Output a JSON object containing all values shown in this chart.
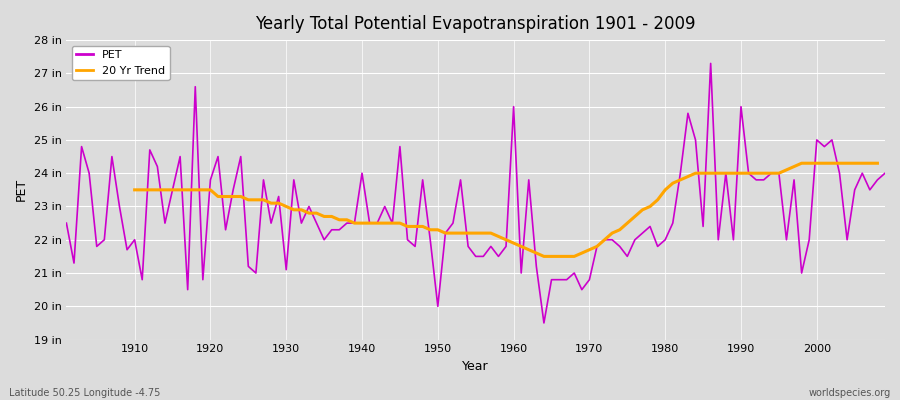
{
  "title": "Yearly Total Potential Evapotranspiration 1901 - 2009",
  "xlabel": "Year",
  "ylabel": "PET",
  "footer_left": "Latitude 50.25 Longitude -4.75",
  "footer_right": "worldspecies.org",
  "pet_color": "#CC00CC",
  "trend_color": "#FFA500",
  "background_color": "#DCDCDC",
  "ylim_min": 19,
  "ylim_max": 28,
  "years": [
    1901,
    1902,
    1903,
    1904,
    1905,
    1906,
    1907,
    1908,
    1909,
    1910,
    1911,
    1912,
    1913,
    1914,
    1915,
    1916,
    1917,
    1918,
    1919,
    1920,
    1921,
    1922,
    1923,
    1924,
    1925,
    1926,
    1927,
    1928,
    1929,
    1930,
    1931,
    1932,
    1933,
    1934,
    1935,
    1936,
    1937,
    1938,
    1939,
    1940,
    1941,
    1942,
    1943,
    1944,
    1945,
    1946,
    1947,
    1948,
    1949,
    1950,
    1951,
    1952,
    1953,
    1954,
    1955,
    1956,
    1957,
    1958,
    1959,
    1960,
    1961,
    1962,
    1963,
    1964,
    1965,
    1966,
    1967,
    1968,
    1969,
    1970,
    1971,
    1972,
    1973,
    1974,
    1975,
    1976,
    1977,
    1978,
    1979,
    1980,
    1981,
    1982,
    1983,
    1984,
    1985,
    1986,
    1987,
    1988,
    1989,
    1990,
    1991,
    1992,
    1993,
    1994,
    1995,
    1996,
    1997,
    1998,
    1999,
    2000,
    2001,
    2002,
    2003,
    2004,
    2005,
    2006,
    2007,
    2008,
    2009
  ],
  "pet_values": [
    22.5,
    21.3,
    24.8,
    24.0,
    21.8,
    22.0,
    24.5,
    23.0,
    21.7,
    22.0,
    20.8,
    24.7,
    24.2,
    22.5,
    23.5,
    24.5,
    20.5,
    26.6,
    20.8,
    23.8,
    24.5,
    22.3,
    23.5,
    24.5,
    21.2,
    21.0,
    23.8,
    22.5,
    23.3,
    21.1,
    23.8,
    22.5,
    23.0,
    22.5,
    22.0,
    22.3,
    22.3,
    22.5,
    22.5,
    24.0,
    22.5,
    22.5,
    23.0,
    22.5,
    24.8,
    22.0,
    21.8,
    23.8,
    22.0,
    20.0,
    22.2,
    22.5,
    23.8,
    21.8,
    21.5,
    21.5,
    21.8,
    21.5,
    21.8,
    26.0,
    21.0,
    23.8,
    21.2,
    19.5,
    20.8,
    20.8,
    20.8,
    21.0,
    20.5,
    20.8,
    21.8,
    22.0,
    22.0,
    21.8,
    21.5,
    22.0,
    22.2,
    22.4,
    21.8,
    22.0,
    22.5,
    24.0,
    25.8,
    25.0,
    22.4,
    27.3,
    22.0,
    24.0,
    22.0,
    26.0,
    24.0,
    23.8,
    23.8,
    24.0,
    24.0,
    22.0,
    23.8,
    21.0,
    22.0,
    25.0,
    24.8,
    25.0,
    24.0,
    22.0,
    23.5,
    24.0,
    23.5,
    23.8,
    24.0
  ],
  "trend_values": [
    null,
    null,
    null,
    null,
    null,
    null,
    null,
    null,
    null,
    23.5,
    23.5,
    23.5,
    23.5,
    23.5,
    23.5,
    23.5,
    23.5,
    23.5,
    23.5,
    23.5,
    23.3,
    23.3,
    23.3,
    23.3,
    23.2,
    23.2,
    23.2,
    23.1,
    23.1,
    23.0,
    22.9,
    22.9,
    22.8,
    22.8,
    22.7,
    22.7,
    22.6,
    22.6,
    22.5,
    22.5,
    22.5,
    22.5,
    22.5,
    22.5,
    22.5,
    22.4,
    22.4,
    22.4,
    22.3,
    22.3,
    22.2,
    22.2,
    22.2,
    22.2,
    22.2,
    22.2,
    22.2,
    22.1,
    22.0,
    21.9,
    21.8,
    21.7,
    21.6,
    21.5,
    21.5,
    21.5,
    21.5,
    21.5,
    21.6,
    21.7,
    21.8,
    22.0,
    22.2,
    22.3,
    22.5,
    22.7,
    22.9,
    23.0,
    23.2,
    23.5,
    23.7,
    23.8,
    23.9,
    24.0,
    24.0,
    24.0,
    24.0,
    24.0,
    24.0,
    24.0,
    24.0,
    24.0,
    24.0,
    24.0,
    24.0,
    24.1,
    24.2,
    24.3,
    24.3,
    24.3,
    24.3,
    24.3,
    24.3,
    24.3,
    24.3,
    24.3,
    24.3,
    24.3
  ]
}
